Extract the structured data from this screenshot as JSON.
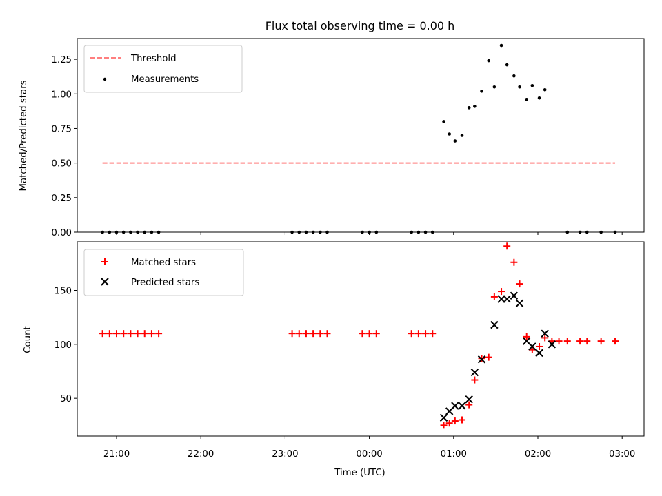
{
  "title": "Flux total observing time = 0.00 h",
  "xlabel": "Time (UTC)",
  "x_ticks": [
    "21:00",
    "22:00",
    "23:00",
    "00:00",
    "01:00",
    "02:00",
    "03:00"
  ],
  "colors": {
    "threshold": "#ff7f7f",
    "measurement": "#000000",
    "matched": "#ff0000",
    "predicted": "#000000"
  },
  "chart_data": [
    {
      "type": "scatter",
      "panel": "top",
      "xlabel": "",
      "ylabel": "Matched/Predicted stars",
      "ylim": [
        0,
        1.4
      ],
      "y_ticks": [
        "0.00",
        "0.25",
        "0.50",
        "0.75",
        "1.00",
        "1.25"
      ],
      "legend": {
        "position": "top-left",
        "entries": [
          "Threshold",
          "Measurements"
        ]
      },
      "threshold": {
        "name": "Threshold",
        "x_start": "20:50",
        "x_end": "02:55",
        "y": 0.5
      },
      "series": [
        {
          "name": "Measurements",
          "marker": "dot",
          "points": [
            [
              "20:50",
              0
            ],
            [
              "20:55",
              0
            ],
            [
              "21:00",
              0
            ],
            [
              "21:05",
              0
            ],
            [
              "21:10",
              0
            ],
            [
              "21:15",
              0
            ],
            [
              "21:20",
              0
            ],
            [
              "21:25",
              0
            ],
            [
              "21:30",
              0
            ],
            [
              "23:05",
              0
            ],
            [
              "23:10",
              0
            ],
            [
              "23:15",
              0
            ],
            [
              "23:20",
              0
            ],
            [
              "23:25",
              0
            ],
            [
              "23:30",
              0
            ],
            [
              "23:55",
              0
            ],
            [
              "00:00",
              0
            ],
            [
              "00:05",
              0
            ],
            [
              "00:30",
              0
            ],
            [
              "00:35",
              0
            ],
            [
              "00:40",
              0
            ],
            [
              "00:45",
              0
            ],
            [
              "00:53",
              0.8
            ],
            [
              "00:57",
              0.71
            ],
            [
              "01:01",
              0.66
            ],
            [
              "01:06",
              0.7
            ],
            [
              "01:11",
              0.9
            ],
            [
              "01:15",
              0.91
            ],
            [
              "01:20",
              1.02
            ],
            [
              "01:25",
              1.24
            ],
            [
              "01:29",
              1.05
            ],
            [
              "01:34",
              1.35
            ],
            [
              "01:38",
              1.21
            ],
            [
              "01:43",
              1.13
            ],
            [
              "01:47",
              1.05
            ],
            [
              "01:52",
              0.96
            ],
            [
              "01:56",
              1.06
            ],
            [
              "02:01",
              0.97
            ],
            [
              "02:05",
              1.03
            ],
            [
              "02:21",
              0
            ],
            [
              "02:30",
              0
            ],
            [
              "02:35",
              0
            ],
            [
              "02:45",
              0
            ],
            [
              "02:55",
              0
            ]
          ]
        }
      ]
    },
    {
      "type": "scatter",
      "panel": "bottom",
      "xlabel": "Time (UTC)",
      "ylabel": "Count",
      "ylim": [
        15,
        195
      ],
      "y_ticks": [
        "50",
        "100",
        "150"
      ],
      "legend": {
        "position": "top-left",
        "entries": [
          "Matched stars",
          "Predicted stars"
        ]
      },
      "series": [
        {
          "name": "Matched stars",
          "marker": "plus",
          "points": [
            [
              "20:50",
              110
            ],
            [
              "20:55",
              110
            ],
            [
              "21:00",
              110
            ],
            [
              "21:05",
              110
            ],
            [
              "21:10",
              110
            ],
            [
              "21:15",
              110
            ],
            [
              "21:20",
              110
            ],
            [
              "21:25",
              110
            ],
            [
              "21:30",
              110
            ],
            [
              "23:05",
              110
            ],
            [
              "23:10",
              110
            ],
            [
              "23:15",
              110
            ],
            [
              "23:20",
              110
            ],
            [
              "23:25",
              110
            ],
            [
              "23:30",
              110
            ],
            [
              "23:55",
              110
            ],
            [
              "00:00",
              110
            ],
            [
              "00:05",
              110
            ],
            [
              "00:30",
              110
            ],
            [
              "00:35",
              110
            ],
            [
              "00:40",
              110
            ],
            [
              "00:45",
              110
            ],
            [
              "00:53",
              25
            ],
            [
              "00:57",
              27
            ],
            [
              "01:01",
              29
            ],
            [
              "01:06",
              30
            ],
            [
              "01:11",
              44
            ],
            [
              "01:15",
              67
            ],
            [
              "01:20",
              87
            ],
            [
              "01:25",
              88
            ],
            [
              "01:29",
              144
            ],
            [
              "01:34",
              149
            ],
            [
              "01:38",
              191
            ],
            [
              "01:43",
              176
            ],
            [
              "01:47",
              156
            ],
            [
              "01:52",
              107
            ],
            [
              "01:56",
              95
            ],
            [
              "02:01",
              98
            ],
            [
              "02:05",
              106
            ],
            [
              "02:10",
              103
            ],
            [
              "02:15",
              103
            ],
            [
              "02:21",
              103
            ],
            [
              "02:30",
              103
            ],
            [
              "02:35",
              103
            ],
            [
              "02:45",
              103
            ],
            [
              "02:55",
              103
            ]
          ]
        },
        {
          "name": "Predicted stars",
          "marker": "x",
          "points": [
            [
              "00:53",
              32
            ],
            [
              "00:57",
              38
            ],
            [
              "01:01",
              43
            ],
            [
              "01:06",
              43
            ],
            [
              "01:11",
              49
            ],
            [
              "01:15",
              74
            ],
            [
              "01:20",
              86
            ],
            [
              "01:29",
              118
            ],
            [
              "01:34",
              142
            ],
            [
              "01:38",
              142
            ],
            [
              "01:43",
              145
            ],
            [
              "01:47",
              138
            ],
            [
              "01:52",
              103
            ],
            [
              "01:56",
              98
            ],
            [
              "02:01",
              92
            ],
            [
              "02:05",
              110
            ],
            [
              "02:10",
              100
            ]
          ]
        }
      ]
    }
  ]
}
